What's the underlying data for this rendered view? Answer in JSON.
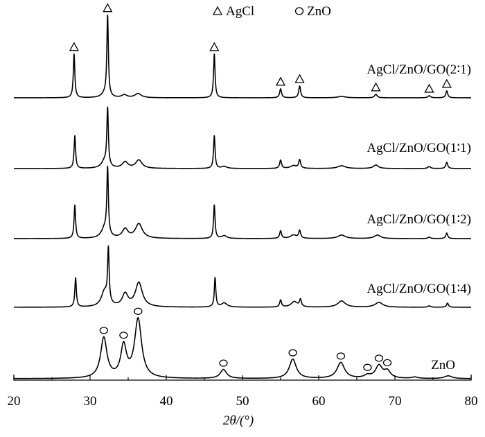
{
  "chart_data": {
    "type": "line",
    "xlabel": "2θ/(°)",
    "xlim": [
      20,
      80
    ],
    "xticks": [
      20,
      30,
      40,
      50,
      60,
      70,
      80
    ],
    "ylabel": "",
    "grid": false,
    "legend": {
      "position": "top-center",
      "entries": [
        {
          "symbol": "triangle",
          "label": "AgCl"
        },
        {
          "symbol": "circle",
          "label": "ZnO"
        }
      ]
    },
    "series": [
      {
        "name": "AgCl/ZnO/GO(2∶1)",
        "peaks": [
          [
            27.9,
            63,
            0.12
          ],
          [
            31.9,
            5,
            0.5
          ],
          [
            32.3,
            116,
            0.12
          ],
          [
            34.5,
            4,
            0.4
          ],
          [
            36.3,
            6,
            0.5
          ],
          [
            46.3,
            63,
            0.12
          ],
          [
            55.0,
            13,
            0.15
          ],
          [
            57.5,
            17,
            0.15
          ],
          [
            63.0,
            2,
            0.6
          ],
          [
            67.5,
            5,
            0.2
          ],
          [
            74.5,
            3,
            0.2
          ],
          [
            76.8,
            10,
            0.15
          ]
        ],
        "markers": [
          {
            "x": 27.9,
            "symbol": "triangle"
          },
          {
            "x": 32.3,
            "symbol": "triangle"
          },
          {
            "x": 46.3,
            "symbol": "triangle"
          },
          {
            "x": 55.0,
            "symbol": "triangle"
          },
          {
            "x": 57.5,
            "symbol": "triangle"
          },
          {
            "x": 67.5,
            "symbol": "triangle"
          },
          {
            "x": 74.5,
            "symbol": "triangle"
          },
          {
            "x": 76.8,
            "symbol": "triangle"
          }
        ]
      },
      {
        "name": "AgCl/ZnO/GO(1∶1)",
        "peaks": [
          [
            28.0,
            47,
            0.12
          ],
          [
            31.9,
            10,
            0.5
          ],
          [
            32.3,
            82,
            0.12
          ],
          [
            34.6,
            9,
            0.45
          ],
          [
            36.4,
            12,
            0.5
          ],
          [
            46.3,
            47,
            0.12
          ],
          [
            47.6,
            3,
            0.4
          ],
          [
            55.0,
            12,
            0.15
          ],
          [
            56.7,
            4,
            0.5
          ],
          [
            57.5,
            12,
            0.15
          ],
          [
            63.0,
            4,
            0.6
          ],
          [
            67.5,
            5,
            0.4
          ],
          [
            74.5,
            3,
            0.2
          ],
          [
            76.8,
            9,
            0.15
          ]
        ]
      },
      {
        "name": "AgCl/ZnO/GO(1∶2)",
        "peaks": [
          [
            28.0,
            48,
            0.12
          ],
          [
            31.9,
            14,
            0.5
          ],
          [
            32.3,
            95,
            0.12
          ],
          [
            34.6,
            13,
            0.45
          ],
          [
            36.4,
            21,
            0.55
          ],
          [
            46.3,
            48,
            0.12
          ],
          [
            47.6,
            4,
            0.4
          ],
          [
            55.0,
            11,
            0.15
          ],
          [
            56.7,
            5,
            0.5
          ],
          [
            57.5,
            11,
            0.15
          ],
          [
            63.0,
            5,
            0.6
          ],
          [
            67.7,
            5,
            0.5
          ],
          [
            74.5,
            2,
            0.2
          ],
          [
            76.8,
            8,
            0.15
          ]
        ]
      },
      {
        "name": "AgCl/ZnO/GO(1∶4)",
        "peaks": [
          [
            28.1,
            42,
            0.12
          ],
          [
            31.9,
            22,
            0.5
          ],
          [
            32.4,
            76,
            0.12
          ],
          [
            34.6,
            18,
            0.45
          ],
          [
            36.4,
            35,
            0.55
          ],
          [
            46.4,
            42,
            0.12
          ],
          [
            47.6,
            6,
            0.45
          ],
          [
            55.0,
            10,
            0.15
          ],
          [
            56.8,
            8,
            0.5
          ],
          [
            57.6,
            10,
            0.15
          ],
          [
            63.0,
            9,
            0.6
          ],
          [
            67.9,
            7,
            0.6
          ],
          [
            74.5,
            2,
            0.2
          ],
          [
            76.9,
            6,
            0.15
          ]
        ]
      },
      {
        "name": "ZnO",
        "peaks": [
          [
            31.8,
            58,
            0.5
          ],
          [
            34.4,
            45,
            0.45
          ],
          [
            36.3,
            85,
            0.55
          ],
          [
            47.5,
            13,
            0.5
          ],
          [
            56.6,
            28,
            0.55
          ],
          [
            62.9,
            23,
            0.6
          ],
          [
            66.4,
            4,
            0.5
          ],
          [
            67.9,
            18,
            0.55
          ],
          [
            69.0,
            10,
            0.5
          ],
          [
            72.6,
            2,
            0.5
          ],
          [
            77.0,
            4,
            0.6
          ]
        ],
        "markers": [
          {
            "x": 31.8,
            "symbol": "circle"
          },
          {
            "x": 34.4,
            "symbol": "circle"
          },
          {
            "x": 36.3,
            "symbol": "circle"
          },
          {
            "x": 47.5,
            "symbol": "circle"
          },
          {
            "x": 56.6,
            "symbol": "circle"
          },
          {
            "x": 62.9,
            "symbol": "circle"
          },
          {
            "x": 66.4,
            "symbol": "circle"
          },
          {
            "x": 67.9,
            "symbol": "circle"
          },
          {
            "x": 69.0,
            "symbol": "circle"
          }
        ]
      }
    ]
  }
}
